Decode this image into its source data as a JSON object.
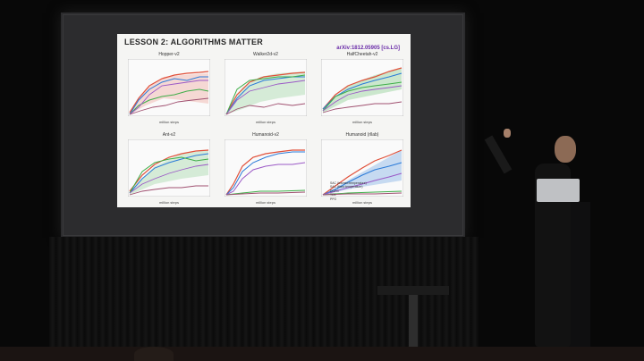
{
  "slide": {
    "title": "LESSON 2: ALGORITHMS MATTER",
    "reference": "arXiv:1812.05905 [cs.LG]"
  },
  "plots": [
    {
      "title": "Hopper-v2",
      "xlabel": "million steps"
    },
    {
      "title": "Walker2d-v2",
      "xlabel": "million steps"
    },
    {
      "title": "HalfCheetah-v2",
      "xlabel": "million steps"
    },
    {
      "title": "Ant-v2",
      "xlabel": "million steps"
    },
    {
      "title": "Humanoid-v2",
      "xlabel": "million steps"
    },
    {
      "title": "Humanoid (rllab)",
      "xlabel": "million steps"
    }
  ],
  "legend": [
    "SAC (learned temperature)",
    "SAC (fixed temperature)",
    "DDPG",
    "TD3",
    "PPO"
  ],
  "colors": {
    "sac_learned": "#e0503a",
    "sac_fixed": "#2a7ad8",
    "ddpg": "#3fae49",
    "td3": "#9b59c6",
    "ppo": "#a05070"
  }
}
